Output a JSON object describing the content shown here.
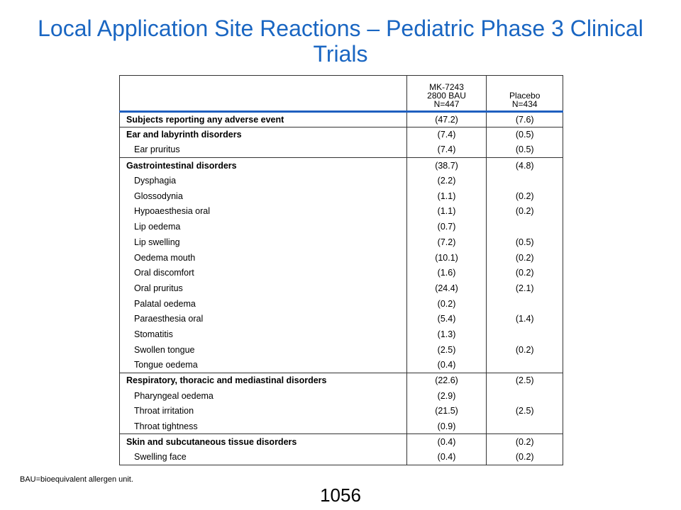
{
  "slide": {
    "title": "Local Application Site Reactions – Pediatric Phase 3 Clinical Trials",
    "footnote": "BAU=bioequivalent  allergen unit.",
    "page_number": "1056"
  },
  "table": {
    "header": {
      "col1": "",
      "col2": [
        "MK-7243",
        "2800 BAU",
        "N=447"
      ],
      "col3": [
        "Placebo",
        "N=434"
      ]
    },
    "rows": [
      {
        "label": "Subjects reporting any adverse event",
        "mk": "(47.2)",
        "placebo": "(7.6)",
        "bold": true,
        "group_start": false
      },
      {
        "label": "Ear and labyrinth disorders",
        "mk": "(7.4)",
        "placebo": "(0.5)",
        "bold": true,
        "group_start": true
      },
      {
        "label": "Ear pruritus",
        "mk": "(7.4)",
        "placebo": "(0.5)",
        "bold": false,
        "group_start": false
      },
      {
        "label": "Gastrointestinal disorders",
        "mk": "(38.7)",
        "placebo": "(4.8)",
        "bold": true,
        "group_start": true
      },
      {
        "label": "Dysphagia",
        "mk": "(2.2)",
        "placebo": "",
        "bold": false,
        "group_start": false
      },
      {
        "label": "Glossodynia",
        "mk": "(1.1)",
        "placebo": "(0.2)",
        "bold": false,
        "group_start": false
      },
      {
        "label": "Hypoaesthesia oral",
        "mk": "(1.1)",
        "placebo": "(0.2)",
        "bold": false,
        "group_start": false
      },
      {
        "label": "Lip oedema",
        "mk": "(0.7)",
        "placebo": "",
        "bold": false,
        "group_start": false
      },
      {
        "label": "Lip swelling",
        "mk": "(7.2)",
        "placebo": "(0.5)",
        "bold": false,
        "group_start": false
      },
      {
        "label": "Oedema mouth",
        "mk": "(10.1)",
        "placebo": "(0.2)",
        "bold": false,
        "group_start": false
      },
      {
        "label": "Oral discomfort",
        "mk": "(1.6)",
        "placebo": "(0.2)",
        "bold": false,
        "group_start": false
      },
      {
        "label": "Oral pruritus",
        "mk": "(24.4)",
        "placebo": "(2.1)",
        "bold": false,
        "group_start": false
      },
      {
        "label": "Palatal oedema",
        "mk": "(0.2)",
        "placebo": "",
        "bold": false,
        "group_start": false
      },
      {
        "label": "Paraesthesia oral",
        "mk": "(5.4)",
        "placebo": "(1.4)",
        "bold": false,
        "group_start": false
      },
      {
        "label": "Stomatitis",
        "mk": "(1.3)",
        "placebo": "",
        "bold": false,
        "group_start": false
      },
      {
        "label": "Swollen tongue",
        "mk": "(2.5)",
        "placebo": "(0.2)",
        "bold": false,
        "group_start": false
      },
      {
        "label": "Tongue oedema",
        "mk": "(0.4)",
        "placebo": "",
        "bold": false,
        "group_start": false
      },
      {
        "label": "Respiratory, thoracic and mediastinal disorders",
        "mk": "(22.6)",
        "placebo": "(2.5)",
        "bold": true,
        "group_start": true
      },
      {
        "label": "Pharyngeal oedema",
        "mk": "(2.9)",
        "placebo": "",
        "bold": false,
        "group_start": false
      },
      {
        "label": "Throat irritation",
        "mk": "(21.5)",
        "placebo": "(2.5)",
        "bold": false,
        "group_start": false
      },
      {
        "label": "Throat tightness",
        "mk": "(0.9)",
        "placebo": "",
        "bold": false,
        "group_start": false
      },
      {
        "label": "Skin and subcutaneous tissue disorders",
        "mk": "(0.4)",
        "placebo": "(0.2)",
        "bold": true,
        "group_start": true
      },
      {
        "label": "Swelling face",
        "mk": "(0.4)",
        "placebo": "(0.2)",
        "bold": false,
        "group_start": false
      }
    ]
  },
  "colors": {
    "title": "#1a66c2",
    "header_rule": "#1f5fbf"
  }
}
